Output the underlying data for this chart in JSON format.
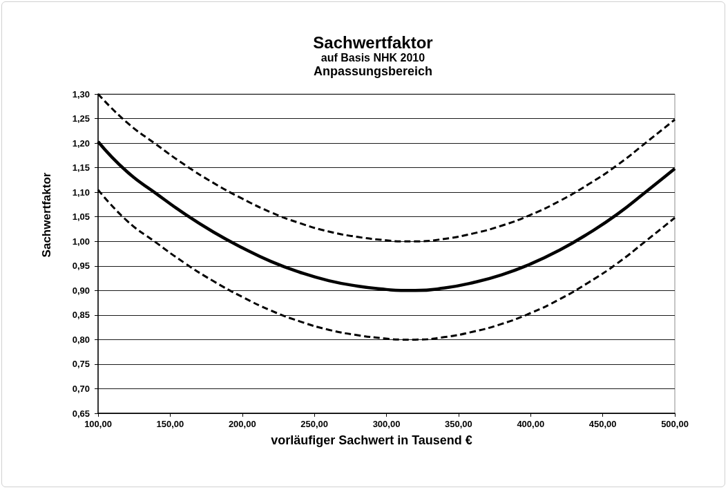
{
  "chart_data": {
    "type": "line",
    "title": "Sachwertfaktor",
    "subtitle": "auf Basis NHK 2010\nAnpassungsbereich",
    "xlabel": "vorläufiger Sachwert in Tausend €",
    "ylabel": "Sachwertfaktor",
    "x": [
      100,
      120,
      140,
      160,
      180,
      200,
      220,
      240,
      260,
      280,
      300,
      310,
      320,
      340,
      360,
      380,
      400,
      420,
      440,
      460,
      480,
      500
    ],
    "series": [
      {
        "color": "#000000",
        "line_style": "dashed",
        "values": [
          1.3,
          1.242,
          1.198,
          1.156,
          1.119,
          1.087,
          1.059,
          1.037,
          1.02,
          1.009,
          1.002,
          1.0,
          1.0,
          1.005,
          1.016,
          1.032,
          1.054,
          1.082,
          1.116,
          1.155,
          1.201,
          1.248
        ]
      },
      {
        "color": "#000000",
        "line_style": "solid",
        "values": [
          1.203,
          1.142,
          1.098,
          1.056,
          1.019,
          0.987,
          0.959,
          0.937,
          0.92,
          0.909,
          0.902,
          0.9,
          0.9,
          0.905,
          0.916,
          0.932,
          0.954,
          0.982,
          1.016,
          1.055,
          1.101,
          1.148
        ]
      },
      {
        "color": "#000000",
        "line_style": "dashed",
        "values": [
          1.105,
          1.042,
          0.998,
          0.956,
          0.919,
          0.887,
          0.859,
          0.837,
          0.82,
          0.809,
          0.802,
          0.8,
          0.8,
          0.805,
          0.816,
          0.832,
          0.854,
          0.882,
          0.916,
          0.955,
          1.001,
          1.048
        ]
      }
    ],
    "xlim": [
      100,
      500
    ],
    "xticks": [
      {
        "value": 100,
        "label": "100,00"
      },
      {
        "value": 150,
        "label": "150,00"
      },
      {
        "value": 200,
        "label": "200,00"
      },
      {
        "value": 250,
        "label": "250,00"
      },
      {
        "value": 300,
        "label": "300,00"
      },
      {
        "value": 350,
        "label": "350,00"
      },
      {
        "value": 400,
        "label": "400,00"
      },
      {
        "value": 450,
        "label": "450,00"
      },
      {
        "value": 500,
        "label": "500,00"
      }
    ],
    "ylim": [
      0.65,
      1.3
    ],
    "yticks": [
      {
        "value": 0.65,
        "label": "0,65"
      },
      {
        "value": 0.7,
        "label": "0,70"
      },
      {
        "value": 0.75,
        "label": "0,75"
      },
      {
        "value": 0.8,
        "label": "0,80"
      },
      {
        "value": 0.85,
        "label": "0,85"
      },
      {
        "value": 0.9,
        "label": "0,90"
      },
      {
        "value": 0.95,
        "label": "0,95"
      },
      {
        "value": 1.0,
        "label": "1,00"
      },
      {
        "value": 1.05,
        "label": "1,05"
      },
      {
        "value": 1.1,
        "label": "1,10"
      },
      {
        "value": 1.15,
        "label": "1,15"
      },
      {
        "value": 1.2,
        "label": "1,20"
      },
      {
        "value": 1.25,
        "label": "1,25"
      },
      {
        "value": 1.3,
        "label": "1,30"
      }
    ],
    "grid": "y",
    "marker": "none"
  }
}
